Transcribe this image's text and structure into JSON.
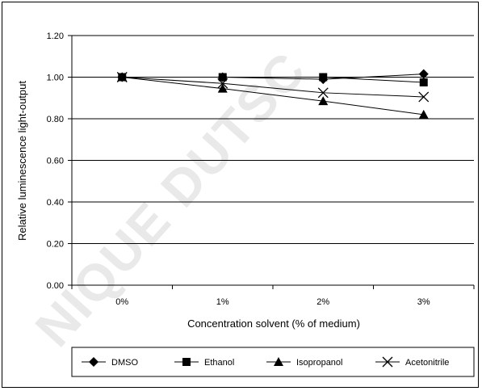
{
  "chart_data": {
    "type": "line",
    "categories": [
      "0%",
      "1%",
      "2%",
      "3%"
    ],
    "series": [
      {
        "name": "DMSO",
        "marker": "diamond",
        "values": [
          1.0,
          1.0,
          0.99,
          1.015
        ]
      },
      {
        "name": "Ethanol",
        "marker": "square",
        "values": [
          1.0,
          1.0,
          1.0,
          0.975
        ]
      },
      {
        "name": "Isopropanol",
        "marker": "triangle",
        "values": [
          1.0,
          0.945,
          0.885,
          0.82
        ]
      },
      {
        "name": "Acetonitrile",
        "marker": "x",
        "values": [
          1.0,
          0.97,
          0.925,
          0.905
        ]
      }
    ],
    "xlabel": "Concentration solvent (% of medium)",
    "ylabel": "Relative luminescence light-output",
    "ylim": [
      0,
      1.2
    ],
    "yticks": [
      "0.00",
      "0.20",
      "0.40",
      "0.60",
      "0.80",
      "1.00",
      "1.20"
    ],
    "grid": true,
    "legend_position": "bottom",
    "line_color": "#000000",
    "watermark": "NIQUE DUTSC"
  }
}
